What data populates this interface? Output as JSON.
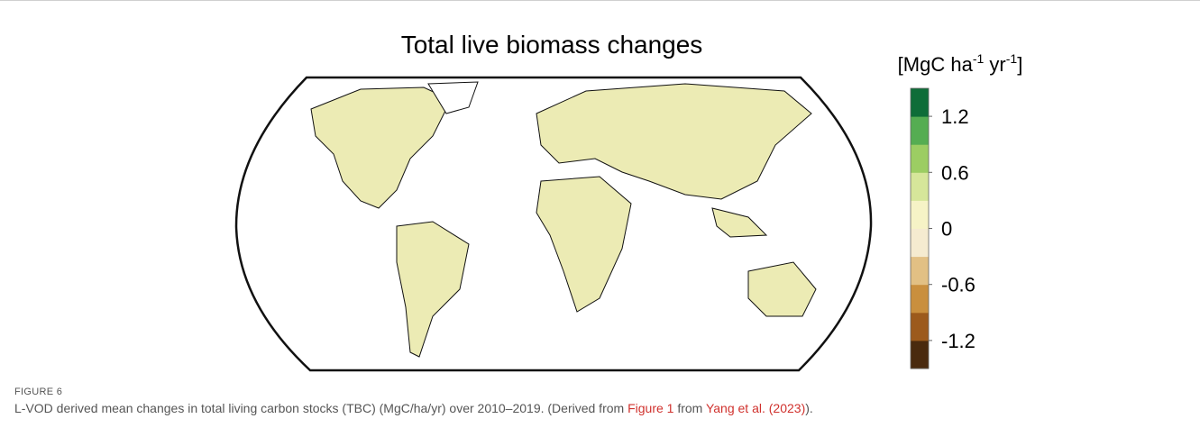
{
  "figure": {
    "title": "Total live biomass changes",
    "unit": {
      "prefix": "[MgC ha",
      "sup1": "-1",
      "mid": " yr",
      "sup2": "-1",
      "suffix": "]"
    },
    "colorbar": {
      "range": [
        -1.5,
        1.5
      ],
      "colors": [
        "#4a2a0e",
        "#9c5a1c",
        "#c98f3e",
        "#e2c084",
        "#f5ebd0",
        "#f6f3c6",
        "#d6e69a",
        "#9ccd63",
        "#55ad52",
        "#0e6d38"
      ],
      "ticks": [
        1.2,
        0.6,
        0,
        -0.6,
        -1.2
      ]
    }
  },
  "caption": {
    "label": "FIGURE 6",
    "text_1": "L-VOD derived mean changes in total living carbon stocks (TBC) (MgC/ha/yr) over 2010–2019. (Derived from ",
    "link_1": "Figure 1",
    "text_2": " from ",
    "link_2": "Yang et al. (2023)",
    "text_3": ")."
  }
}
